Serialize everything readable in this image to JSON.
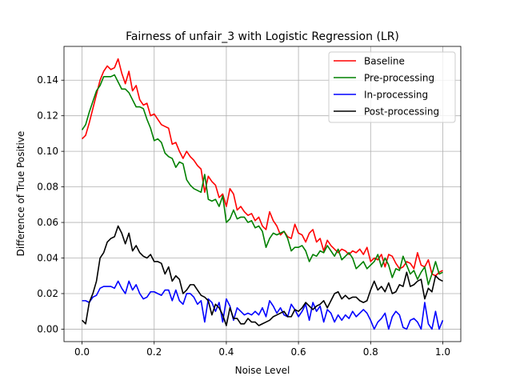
{
  "chart_data": {
    "type": "line",
    "title": "Fairness of unfair_3 with Logistic Regression (LR)",
    "xlabel": "Noise Level",
    "ylabel": "Difference of True Positive",
    "xlim": [
      -0.05,
      1.05
    ],
    "ylim": [
      -0.007,
      0.159
    ],
    "xticks": [
      0.0,
      0.2,
      0.4,
      0.6,
      0.8,
      1.0
    ],
    "xtick_labels": [
      "0.0",
      "0.2",
      "0.4",
      "0.6",
      "0.8",
      "1.0"
    ],
    "yticks": [
      0.0,
      0.02,
      0.04,
      0.06,
      0.08,
      0.1,
      0.12,
      0.14
    ],
    "ytick_labels": [
      "0.00",
      "0.02",
      "0.04",
      "0.06",
      "0.08",
      "0.10",
      "0.12",
      "0.14"
    ],
    "grid": true,
    "legend_position": "top-right",
    "x": [
      0.0,
      0.01,
      0.02,
      0.03,
      0.04,
      0.05,
      0.06,
      0.07,
      0.08,
      0.09,
      0.1,
      0.11,
      0.12,
      0.13,
      0.14,
      0.15,
      0.16,
      0.17,
      0.18,
      0.19,
      0.2,
      0.21,
      0.22,
      0.23,
      0.24,
      0.25,
      0.26,
      0.27,
      0.28,
      0.29,
      0.3,
      0.31,
      0.32,
      0.33,
      0.34,
      0.35,
      0.36,
      0.37,
      0.38,
      0.39,
      0.4,
      0.41,
      0.42,
      0.43,
      0.44,
      0.45,
      0.46,
      0.47,
      0.48,
      0.49,
      0.5,
      0.51,
      0.52,
      0.53,
      0.54,
      0.55,
      0.56,
      0.57,
      0.58,
      0.59,
      0.6,
      0.61,
      0.62,
      0.63,
      0.64,
      0.65,
      0.66,
      0.67,
      0.68,
      0.69,
      0.7,
      0.71,
      0.72,
      0.73,
      0.74,
      0.75,
      0.76,
      0.77,
      0.78,
      0.79,
      0.8,
      0.81,
      0.82,
      0.83,
      0.84,
      0.85,
      0.86,
      0.87,
      0.88,
      0.89,
      0.9,
      0.91,
      0.92,
      0.93,
      0.94,
      0.95,
      0.96,
      0.97,
      0.98,
      0.99,
      1.0
    ],
    "series": [
      {
        "name": "Baseline",
        "color": "#ff0000",
        "values": [
          0.107,
          0.109,
          0.116,
          0.124,
          0.132,
          0.14,
          0.145,
          0.148,
          0.146,
          0.147,
          0.152,
          0.144,
          0.138,
          0.145,
          0.134,
          0.137,
          0.129,
          0.126,
          0.127,
          0.12,
          0.121,
          0.118,
          0.115,
          0.114,
          0.113,
          0.104,
          0.105,
          0.1,
          0.096,
          0.1,
          0.097,
          0.095,
          0.092,
          0.09,
          0.077,
          0.086,
          0.083,
          0.081,
          0.074,
          0.076,
          0.069,
          0.079,
          0.076,
          0.067,
          0.069,
          0.066,
          0.064,
          0.065,
          0.061,
          0.063,
          0.058,
          0.056,
          0.066,
          0.061,
          0.058,
          0.053,
          0.055,
          0.052,
          0.051,
          0.059,
          0.054,
          0.053,
          0.049,
          0.054,
          0.056,
          0.049,
          0.051,
          0.044,
          0.05,
          0.047,
          0.045,
          0.043,
          0.045,
          0.044,
          0.042,
          0.044,
          0.043,
          0.045,
          0.042,
          0.046,
          0.038,
          0.04,
          0.039,
          0.042,
          0.035,
          0.042,
          0.041,
          0.037,
          0.034,
          0.035,
          0.038,
          0.037,
          0.034,
          0.043,
          0.036,
          0.035,
          0.039,
          0.031,
          0.03,
          0.032,
          0.033
        ]
      },
      {
        "name": "Pre-processing",
        "color": "#008000",
        "values": [
          0.112,
          0.115,
          0.122,
          0.128,
          0.134,
          0.137,
          0.142,
          0.142,
          0.142,
          0.143,
          0.139,
          0.135,
          0.135,
          0.133,
          0.129,
          0.125,
          0.125,
          0.124,
          0.118,
          0.113,
          0.106,
          0.107,
          0.105,
          0.099,
          0.097,
          0.096,
          0.091,
          0.094,
          0.093,
          0.084,
          0.081,
          0.079,
          0.078,
          0.077,
          0.087,
          0.073,
          0.072,
          0.073,
          0.069,
          0.075,
          0.06,
          0.062,
          0.067,
          0.062,
          0.063,
          0.063,
          0.06,
          0.061,
          0.057,
          0.058,
          0.055,
          0.046,
          0.051,
          0.054,
          0.053,
          0.054,
          0.055,
          0.051,
          0.044,
          0.046,
          0.046,
          0.047,
          0.044,
          0.038,
          0.042,
          0.041,
          0.044,
          0.043,
          0.047,
          0.044,
          0.041,
          0.045,
          0.039,
          0.041,
          0.043,
          0.04,
          0.034,
          0.036,
          0.038,
          0.034,
          0.036,
          0.038,
          0.042,
          0.035,
          0.04,
          0.036,
          0.029,
          0.034,
          0.033,
          0.041,
          0.036,
          0.031,
          0.033,
          0.028,
          0.032,
          0.035,
          0.025,
          0.031,
          0.038,
          0.031,
          0.032
        ]
      },
      {
        "name": "In-processing",
        "color": "#0000ff",
        "values": [
          0.016,
          0.016,
          0.015,
          0.018,
          0.019,
          0.023,
          0.024,
          0.024,
          0.024,
          0.023,
          0.027,
          0.023,
          0.02,
          0.027,
          0.022,
          0.025,
          0.02,
          0.017,
          0.018,
          0.021,
          0.021,
          0.02,
          0.019,
          0.022,
          0.022,
          0.016,
          0.022,
          0.016,
          0.014,
          0.02,
          0.02,
          0.018,
          0.014,
          0.016,
          0.004,
          0.017,
          0.015,
          0.01,
          0.015,
          0.004,
          0.017,
          0.013,
          0.005,
          0.012,
          0.01,
          0.008,
          0.009,
          0.008,
          0.01,
          0.008,
          0.012,
          0.007,
          0.016,
          0.013,
          0.009,
          0.012,
          0.008,
          0.007,
          0.014,
          0.011,
          0.007,
          0.01,
          0.014,
          0.005,
          0.015,
          0.01,
          0.013,
          0.004,
          0.011,
          0.009,
          0.004,
          0.008,
          0.005,
          0.008,
          0.006,
          0.01,
          0.007,
          0.009,
          0.011,
          0.009,
          0.005,
          0.0,
          0.004,
          0.006,
          0.009,
          0.0,
          0.007,
          0.01,
          0.008,
          0.001,
          0.0,
          0.005,
          0.006,
          0.004,
          0.0,
          0.015,
          0.003,
          0.0,
          0.01,
          0.0,
          0.005
        ]
      },
      {
        "name": "Post-processing",
        "color": "#000000",
        "values": [
          0.005,
          0.003,
          0.015,
          0.02,
          0.027,
          0.04,
          0.043,
          0.049,
          0.051,
          0.052,
          0.058,
          0.054,
          0.048,
          0.054,
          0.044,
          0.047,
          0.043,
          0.041,
          0.04,
          0.042,
          0.038,
          0.038,
          0.037,
          0.031,
          0.035,
          0.027,
          0.03,
          0.028,
          0.02,
          0.022,
          0.025,
          0.025,
          0.022,
          0.019,
          0.018,
          0.016,
          0.008,
          0.014,
          0.012,
          0.008,
          0.002,
          0.012,
          0.006,
          0.006,
          0.003,
          0.003,
          0.006,
          0.004,
          0.004,
          0.002,
          0.003,
          0.004,
          0.005,
          0.007,
          0.008,
          0.009,
          0.01,
          0.007,
          0.007,
          0.011,
          0.01,
          0.012,
          0.015,
          0.013,
          0.011,
          0.013,
          0.014,
          0.016,
          0.012,
          0.016,
          0.02,
          0.021,
          0.017,
          0.019,
          0.017,
          0.018,
          0.018,
          0.016,
          0.015,
          0.016,
          0.022,
          0.027,
          0.022,
          0.024,
          0.021,
          0.026,
          0.02,
          0.021,
          0.025,
          0.024,
          0.032,
          0.024,
          0.025,
          0.027,
          0.028,
          0.017,
          0.023,
          0.021,
          0.03,
          0.028,
          0.027
        ]
      }
    ]
  }
}
